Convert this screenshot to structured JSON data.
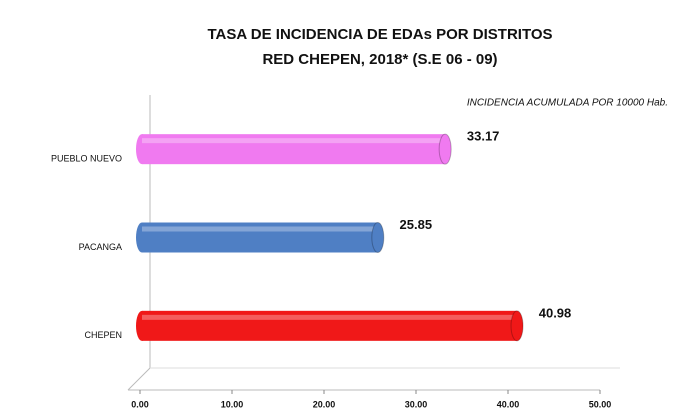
{
  "chart_data": {
    "type": "bar",
    "orientation": "horizontal",
    "title": "TASA DE INCIDENCIA DE EDAs  POR DISTRITOS",
    "subtitle": "RED CHEPEN, 2018* (S.E 06 - 09)",
    "annotation": "INCIDENCIA ACUMULADA POR 10000 Hab.",
    "categories": [
      "PUEBLO NUEVO",
      "PACANGA",
      "CHEPEN"
    ],
    "values": [
      33.17,
      25.85,
      40.98
    ],
    "colors": [
      "#f07af0",
      "#4f7fc4",
      "#f01818"
    ],
    "xlim": [
      0,
      50
    ],
    "xticks": [
      {
        "value": 0,
        "label": "0.00"
      },
      {
        "value": 10,
        "label": "10.00"
      },
      {
        "value": 20,
        "label": "20.00"
      },
      {
        "value": 30,
        "label": "30.00"
      },
      {
        "value": 40,
        "label": "40.00"
      },
      {
        "value": 50,
        "label": "50.00"
      }
    ]
  }
}
